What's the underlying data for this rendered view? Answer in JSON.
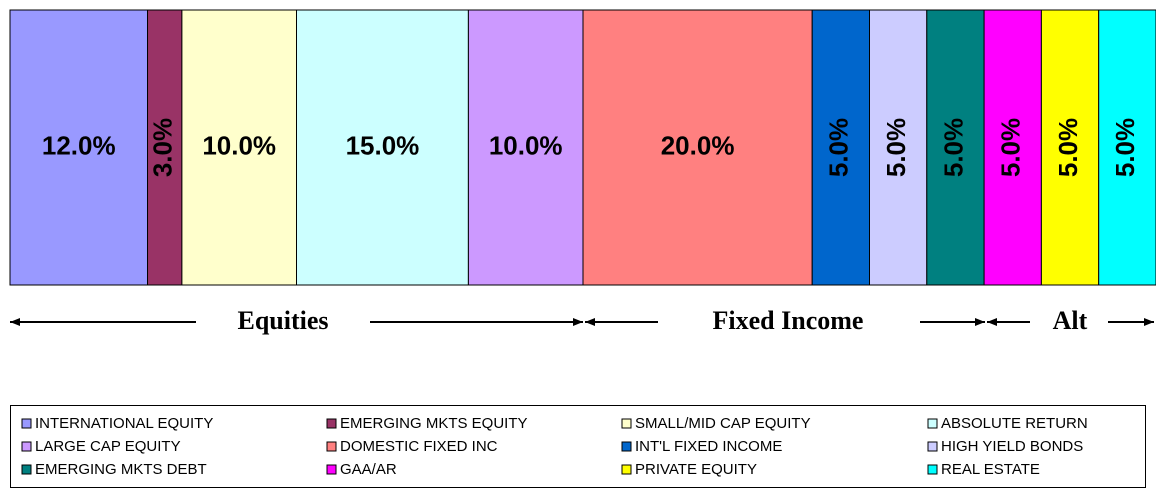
{
  "chart_data": {
    "type": "bar",
    "orientation": "horizontal",
    "stacked": true,
    "series": [
      {
        "name": "INTERNATIONAL EQUITY",
        "color": "#9999ff",
        "values": [
          12
        ],
        "value_labels": [
          "12.0%"
        ]
      },
      {
        "name": "EMERGING MKTS EQUITY",
        "color": "#993366",
        "values": [
          3
        ],
        "value_labels": [
          "3.0%"
        ]
      },
      {
        "name": "SMALL/MID CAP EQUITY",
        "color": "#ffffcc",
        "values": [
          10
        ],
        "value_labels": [
          "10.0%"
        ]
      },
      {
        "name": "ABSOLUTE RETURN",
        "color": "#ccffff",
        "values": [
          15
        ],
        "value_labels": [
          "15.0%"
        ]
      },
      {
        "name": "LARGE CAP EQUITY",
        "color": "#cc99ff",
        "values": [
          10
        ],
        "value_labels": [
          "10.0%"
        ]
      },
      {
        "name": "DOMESTIC FIXED INC",
        "color": "#ff8080",
        "values": [
          20
        ],
        "value_labels": [
          "20.0%"
        ]
      },
      {
        "name": "INT'L FIXED INCOME",
        "color": "#0066cc",
        "values": [
          5
        ],
        "value_labels": [
          "5.0%"
        ]
      },
      {
        "name": "HIGH YIELD BONDS",
        "color": "#ccccff",
        "values": [
          5
        ],
        "value_labels": [
          "5.0%"
        ]
      },
      {
        "name": "EMERGING MKTS DEBT",
        "color": "#008080",
        "values": [
          5
        ],
        "value_labels": [
          "5.0%"
        ]
      },
      {
        "name": "GAA/AR",
        "color": "#ff00ff",
        "values": [
          5
        ],
        "value_labels": [
          "5.0%"
        ]
      },
      {
        "name": "PRIVATE EQUITY",
        "color": "#ffff00",
        "values": [
          5
        ],
        "value_labels": [
          "5.0%"
        ]
      },
      {
        "name": "REAL ESTATE",
        "color": "#00ffff",
        "values": [
          5
        ],
        "value_labels": [
          "5.0%"
        ]
      }
    ],
    "xlim": [
      0,
      100
    ],
    "annotations": [
      "Equities",
      "Fixed Income",
      "Alt"
    ]
  }
}
